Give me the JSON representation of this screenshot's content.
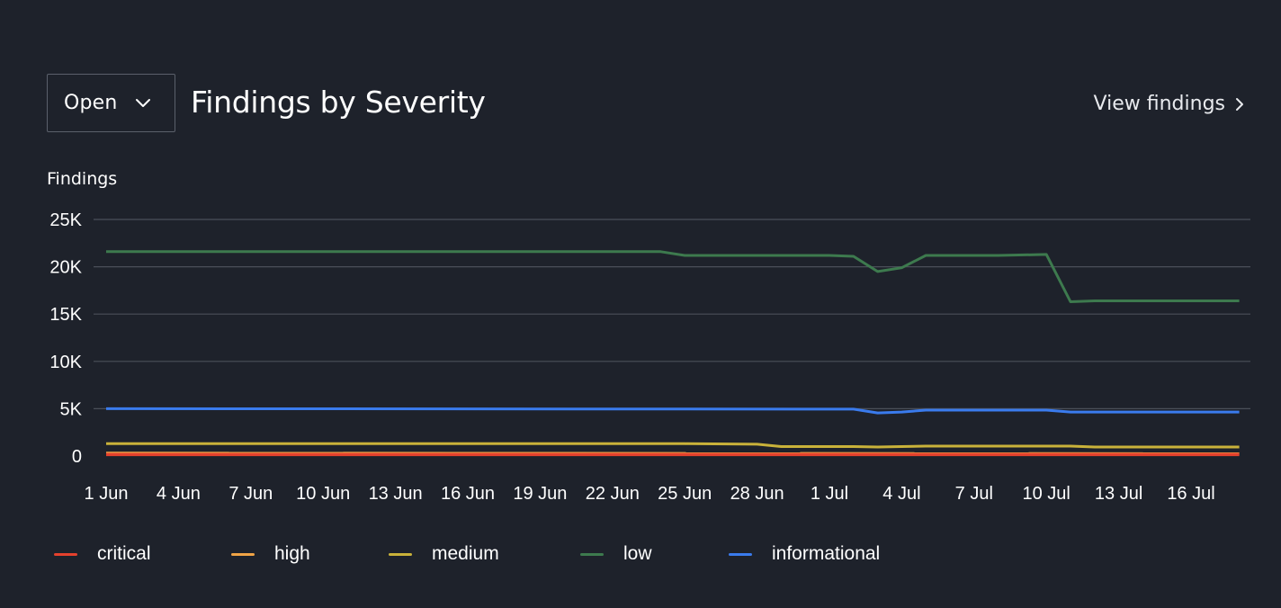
{
  "header": {
    "status_select": {
      "value": "Open"
    },
    "title": "Findings by Severity",
    "view_link": "View findings"
  },
  "chart_data": {
    "type": "line",
    "title": "Findings by Severity",
    "ylabel": "Findings",
    "xlabel": "",
    "ylim": [
      0,
      25000
    ],
    "y_ticks": [
      0,
      5000,
      10000,
      15000,
      20000,
      25000
    ],
    "y_tick_labels": [
      "0",
      "5K",
      "10K",
      "15K",
      "20K",
      "25K"
    ],
    "x_ticks": [
      "2024-06-01",
      "2024-06-04",
      "2024-06-07",
      "2024-06-10",
      "2024-06-13",
      "2024-06-16",
      "2024-06-19",
      "2024-06-22",
      "2024-06-25",
      "2024-06-28",
      "2024-07-01",
      "2024-07-04",
      "2024-07-07",
      "2024-07-10",
      "2024-07-13",
      "2024-07-16"
    ],
    "x_tick_labels": [
      "1 Jun",
      "4 Jun",
      "7 Jun",
      "10 Jun",
      "13 Jun",
      "16 Jun",
      "19 Jun",
      "22 Jun",
      "25 Jun",
      "28 Jun",
      "1 Jul",
      "4 Jul",
      "7 Jul",
      "10 Jul",
      "13 Jul",
      "16 Jul"
    ],
    "grid": true,
    "legend_position": "bottom",
    "series": [
      {
        "name": "critical",
        "color": "#e5412d",
        "points": [
          [
            "2024-06-01",
            150
          ],
          [
            "2024-07-18",
            150
          ]
        ]
      },
      {
        "name": "high",
        "color": "#f0a446",
        "points": [
          [
            "2024-06-01",
            300
          ],
          [
            "2024-07-18",
            250
          ]
        ]
      },
      {
        "name": "medium",
        "color": "#c9b23a",
        "points": [
          [
            "2024-06-01",
            1300
          ],
          [
            "2024-06-25",
            1300
          ],
          [
            "2024-06-28",
            1250
          ],
          [
            "2024-06-29",
            1000
          ],
          [
            "2024-07-02",
            1000
          ],
          [
            "2024-07-03",
            950
          ],
          [
            "2024-07-04",
            1000
          ],
          [
            "2024-07-05",
            1050
          ],
          [
            "2024-07-11",
            1050
          ],
          [
            "2024-07-12",
            950
          ],
          [
            "2024-07-18",
            950
          ]
        ]
      },
      {
        "name": "low",
        "color": "#3d7a4e",
        "points": [
          [
            "2024-06-01",
            21600
          ],
          [
            "2024-06-24",
            21600
          ],
          [
            "2024-06-25",
            21200
          ],
          [
            "2024-07-01",
            21200
          ],
          [
            "2024-07-02",
            21100
          ],
          [
            "2024-07-03",
            19500
          ],
          [
            "2024-07-04",
            19900
          ],
          [
            "2024-07-05",
            21200
          ],
          [
            "2024-07-08",
            21200
          ],
          [
            "2024-07-10",
            21300
          ],
          [
            "2024-07-11",
            16300
          ],
          [
            "2024-07-12",
            16400
          ],
          [
            "2024-07-18",
            16400
          ]
        ]
      },
      {
        "name": "informational",
        "color": "#3a7bed",
        "points": [
          [
            "2024-06-01",
            5000
          ],
          [
            "2024-07-02",
            4950
          ],
          [
            "2024-07-03",
            4550
          ],
          [
            "2024-07-04",
            4650
          ],
          [
            "2024-07-05",
            4850
          ],
          [
            "2024-07-10",
            4850
          ],
          [
            "2024-07-11",
            4650
          ],
          [
            "2024-07-18",
            4650
          ]
        ]
      }
    ]
  }
}
